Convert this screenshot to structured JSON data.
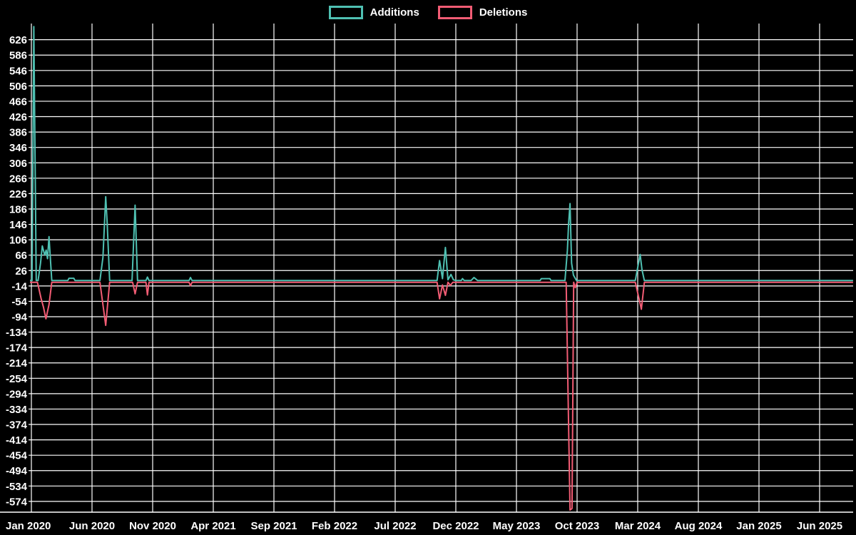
{
  "legend": {
    "items": [
      {
        "label": "Additions",
        "color": "#4fc0b2"
      },
      {
        "label": "Deletions",
        "color": "#f25c74"
      }
    ]
  },
  "colors": {
    "background": "#000000",
    "grid": "#ffffff",
    "text": "#ffffff",
    "additions": "#4fc0b2",
    "deletions": "#f25c74"
  },
  "chart_data": {
    "type": "line",
    "title": "",
    "xlabel": "",
    "ylabel": "",
    "grid": true,
    "legend_position": "top-center",
    "x_unit": "months since Jan 2020",
    "x_axis": {
      "labels": [
        "Jan 2020",
        "Jun 2020",
        "Nov 2020",
        "Apr 2021",
        "Sep 2021",
        "Feb 2022",
        "Jul 2022",
        "Dec 2022",
        "May 2023",
        "Oct 2023",
        "Mar 2024",
        "Aug 2024",
        "Jan 2025",
        "Jun 2025"
      ],
      "label_positions_months": [
        0,
        5,
        10,
        15,
        20,
        25,
        30,
        35,
        40,
        45,
        50,
        55,
        60,
        65
      ]
    },
    "y_axis": {
      "ticks": [
        626,
        586,
        546,
        506,
        466,
        426,
        386,
        346,
        306,
        266,
        226,
        186,
        146,
        106,
        66,
        26,
        -14,
        -54,
        -94,
        -134,
        -174,
        -214,
        -254,
        -294,
        -334,
        -374,
        -414,
        -454,
        -494,
        -534,
        -574
      ],
      "range": [
        -602,
        668
      ]
    },
    "series": [
      {
        "name": "Additions",
        "color": "#4fc0b2",
        "points": [
          [
            -0.12,
            0
          ],
          [
            0.05,
            0
          ],
          [
            0.2,
            660
          ],
          [
            0.4,
            0
          ],
          [
            0.55,
            0
          ],
          [
            0.75,
            45
          ],
          [
            0.9,
            90
          ],
          [
            1.1,
            66
          ],
          [
            1.22,
            79
          ],
          [
            1.33,
            57
          ],
          [
            1.45,
            114
          ],
          [
            1.6,
            40
          ],
          [
            1.68,
            0
          ],
          [
            3.0,
            0
          ],
          [
            3.1,
            6
          ],
          [
            3.5,
            6
          ],
          [
            3.6,
            0
          ],
          [
            5.65,
            0
          ],
          [
            5.9,
            60
          ],
          [
            6.13,
            218
          ],
          [
            6.25,
            148
          ],
          [
            6.45,
            0
          ],
          [
            8.3,
            0
          ],
          [
            8.55,
            196
          ],
          [
            8.75,
            0
          ],
          [
            9.45,
            0
          ],
          [
            9.57,
            9
          ],
          [
            9.7,
            0
          ],
          [
            13.0,
            0
          ],
          [
            13.12,
            8
          ],
          [
            13.25,
            0
          ],
          [
            33.45,
            0
          ],
          [
            33.66,
            52
          ],
          [
            33.9,
            5
          ],
          [
            34.14,
            86
          ],
          [
            34.35,
            2
          ],
          [
            34.6,
            16
          ],
          [
            34.8,
            2
          ],
          [
            35.0,
            0
          ],
          [
            35.45,
            0
          ],
          [
            35.55,
            5
          ],
          [
            35.7,
            0
          ],
          [
            36.25,
            0
          ],
          [
            36.5,
            8
          ],
          [
            36.8,
            0
          ],
          [
            41.95,
            0
          ],
          [
            42.05,
            5
          ],
          [
            42.75,
            5
          ],
          [
            42.85,
            0
          ],
          [
            44.0,
            0
          ],
          [
            44.2,
            78
          ],
          [
            44.3,
            148
          ],
          [
            44.42,
            200
          ],
          [
            44.55,
            45
          ],
          [
            44.7,
            14
          ],
          [
            44.95,
            0
          ],
          [
            49.8,
            0
          ],
          [
            50.2,
            68
          ],
          [
            50.35,
            28
          ],
          [
            50.55,
            0
          ],
          [
            67.76,
            0
          ]
        ]
      },
      {
        "name": "Deletions",
        "color": "#f25c74",
        "points": [
          [
            -0.12,
            0
          ],
          [
            0.5,
            0
          ],
          [
            0.8,
            -42
          ],
          [
            1.0,
            -65
          ],
          [
            1.2,
            -95
          ],
          [
            1.45,
            -58
          ],
          [
            1.68,
            0
          ],
          [
            5.65,
            0
          ],
          [
            6.13,
            -112
          ],
          [
            6.45,
            0
          ],
          [
            8.35,
            0
          ],
          [
            8.55,
            -30
          ],
          [
            8.75,
            0
          ],
          [
            9.45,
            0
          ],
          [
            9.57,
            -33
          ],
          [
            9.7,
            0
          ],
          [
            13.0,
            0
          ],
          [
            13.12,
            -9
          ],
          [
            13.25,
            0
          ],
          [
            33.45,
            0
          ],
          [
            33.66,
            -43
          ],
          [
            33.9,
            -7
          ],
          [
            34.14,
            -34
          ],
          [
            34.35,
            0
          ],
          [
            34.55,
            -8
          ],
          [
            34.75,
            0
          ],
          [
            44.1,
            0
          ],
          [
            44.42,
            -592
          ],
          [
            44.58,
            -588
          ],
          [
            44.72,
            0
          ],
          [
            44.85,
            -14
          ],
          [
            45.0,
            0
          ],
          [
            49.8,
            0
          ],
          [
            50.15,
            -48
          ],
          [
            50.3,
            -70
          ],
          [
            50.55,
            0
          ],
          [
            67.76,
            0
          ]
        ]
      }
    ]
  }
}
